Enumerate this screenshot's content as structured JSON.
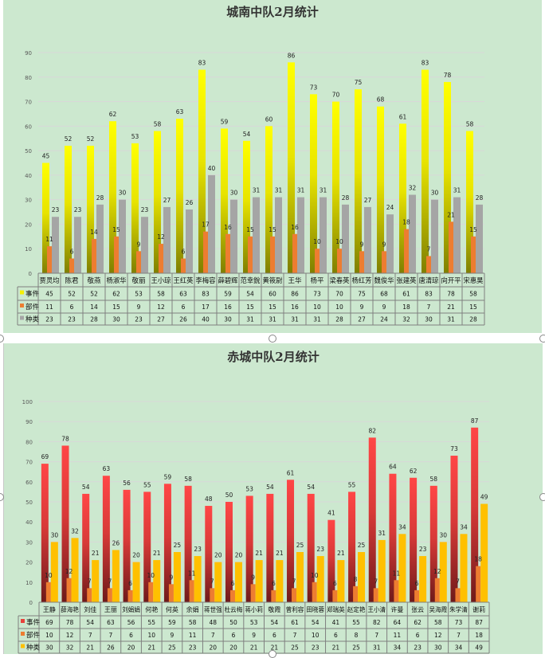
{
  "chart_data": [
    {
      "type": "bar",
      "title": "城南中队2月统计",
      "ylim": [
        0,
        90
      ],
      "yticks": [
        0,
        10,
        20,
        30,
        40,
        50,
        60,
        70,
        80,
        90
      ],
      "grid": true,
      "legend": "table",
      "categories": [
        "贾灵均",
        "陈君",
        "敬燕",
        "杨淑华",
        "敬丽",
        "王小琼",
        "王红英",
        "李梅容",
        "薛碧辉",
        "范幸銳",
        "黄筱尉",
        "王华",
        "杨平",
        "梁春英",
        "杨红芳",
        "魏俊华",
        "张建英",
        "唐清琼",
        "向开平",
        "宋惠昊"
      ],
      "series": [
        {
          "name": "事件",
          "color": "#f5f000",
          "values": [
            45,
            52,
            52,
            62,
            53,
            58,
            63,
            83,
            59,
            54,
            60,
            86,
            73,
            70,
            75,
            68,
            61,
            83,
            78,
            58
          ]
        },
        {
          "name": "部件",
          "color": "#ed7d31",
          "values": [
            11,
            6,
            14,
            15,
            9,
            12,
            6,
            17,
            16,
            15,
            15,
            16,
            10,
            10,
            9,
            9,
            18,
            7,
            21,
            15
          ]
        },
        {
          "name": "种类",
          "color": "#a5a5a5",
          "values": [
            23,
            23,
            28,
            30,
            23,
            27,
            26,
            40,
            30,
            31,
            31,
            31,
            31,
            28,
            27,
            24,
            32,
            30,
            31,
            28
          ]
        }
      ]
    },
    {
      "type": "bar",
      "title": "赤城中队2月统计",
      "ylim": [
        0,
        100
      ],
      "yticks": [
        0,
        10,
        20,
        30,
        40,
        50,
        60,
        70,
        80,
        90,
        100
      ],
      "grid": true,
      "legend": "table",
      "categories": [
        "王静",
        "薛海艳",
        "刘佳",
        "王丽",
        "刘娟娟",
        "何艳",
        "何英",
        "余娟",
        "蒋世强",
        "杜云梅",
        "蒋小莉",
        "敬霞",
        "曾利容",
        "田晓蓉",
        "郑瑞英",
        "赵定艳",
        "王小清",
        "许曼",
        "张云",
        "吴海霞",
        "朱学清",
        "谢莉"
      ],
      "series": [
        {
          "name": "事件",
          "color": "#e8413b",
          "values": [
            69,
            78,
            54,
            63,
            56,
            55,
            59,
            58,
            48,
            50,
            53,
            54,
            61,
            54,
            41,
            55,
            82,
            64,
            62,
            58,
            73,
            87
          ]
        },
        {
          "name": "部件",
          "color": "#ed7d31",
          "values": [
            10,
            12,
            7,
            7,
            6,
            10,
            9,
            11,
            7,
            6,
            9,
            6,
            7,
            10,
            6,
            8,
            7,
            11,
            6,
            12,
            7,
            18
          ]
        },
        {
          "name": "种类",
          "color": "#ffc000",
          "values": [
            30,
            32,
            21,
            26,
            20,
            21,
            25,
            23,
            20,
            20,
            21,
            21,
            25,
            23,
            21,
            25,
            31,
            34,
            23,
            30,
            34,
            49
          ]
        }
      ]
    }
  ]
}
